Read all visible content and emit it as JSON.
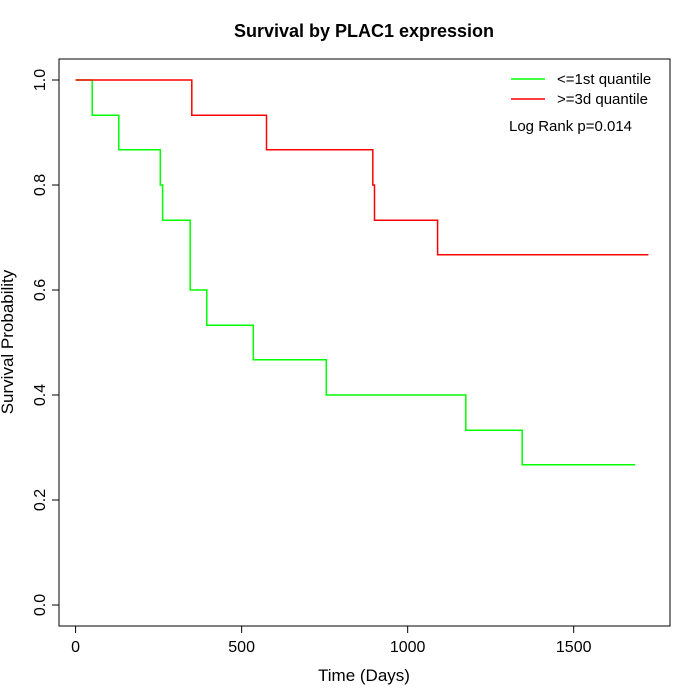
{
  "chart_data": {
    "type": "line",
    "subtype": "kaplan-meier step",
    "title": "Survival by PLAC1 expression",
    "xlabel": "Time (Days)",
    "ylabel": "Survival Probability",
    "xlim": [
      -50,
      1790
    ],
    "ylim": [
      -0.04,
      1.04
    ],
    "x_ticks": [
      0,
      500,
      1000,
      1500
    ],
    "y_ticks": [
      0.0,
      0.2,
      0.4,
      0.6,
      0.8,
      1.0
    ],
    "x_tick_labels": [
      "0",
      "500",
      "1000",
      "1500"
    ],
    "y_tick_labels": [
      "0.0",
      "0.2",
      "0.4",
      "0.6",
      "0.8",
      "1.0"
    ],
    "grid": false,
    "legend_position": "top-right",
    "annotation": "Log Rank p=0.014",
    "series": [
      {
        "name": "<=1st quantile",
        "color": "#00ff00",
        "x": [
          0,
          50,
          130,
          255,
          262,
          345,
          395,
          535,
          755,
          1175,
          1345,
          1685
        ],
        "y": [
          1.0,
          0.933,
          0.867,
          0.8,
          0.733,
          0.6,
          0.533,
          0.467,
          0.4,
          0.333,
          0.267,
          0.267
        ]
      },
      {
        "name": ">=3d quantile",
        "color": "#ff0000",
        "x": [
          0,
          350,
          575,
          895,
          900,
          1090,
          1725
        ],
        "y": [
          1.0,
          0.933,
          0.867,
          0.8,
          0.733,
          0.667,
          0.667
        ]
      }
    ]
  }
}
